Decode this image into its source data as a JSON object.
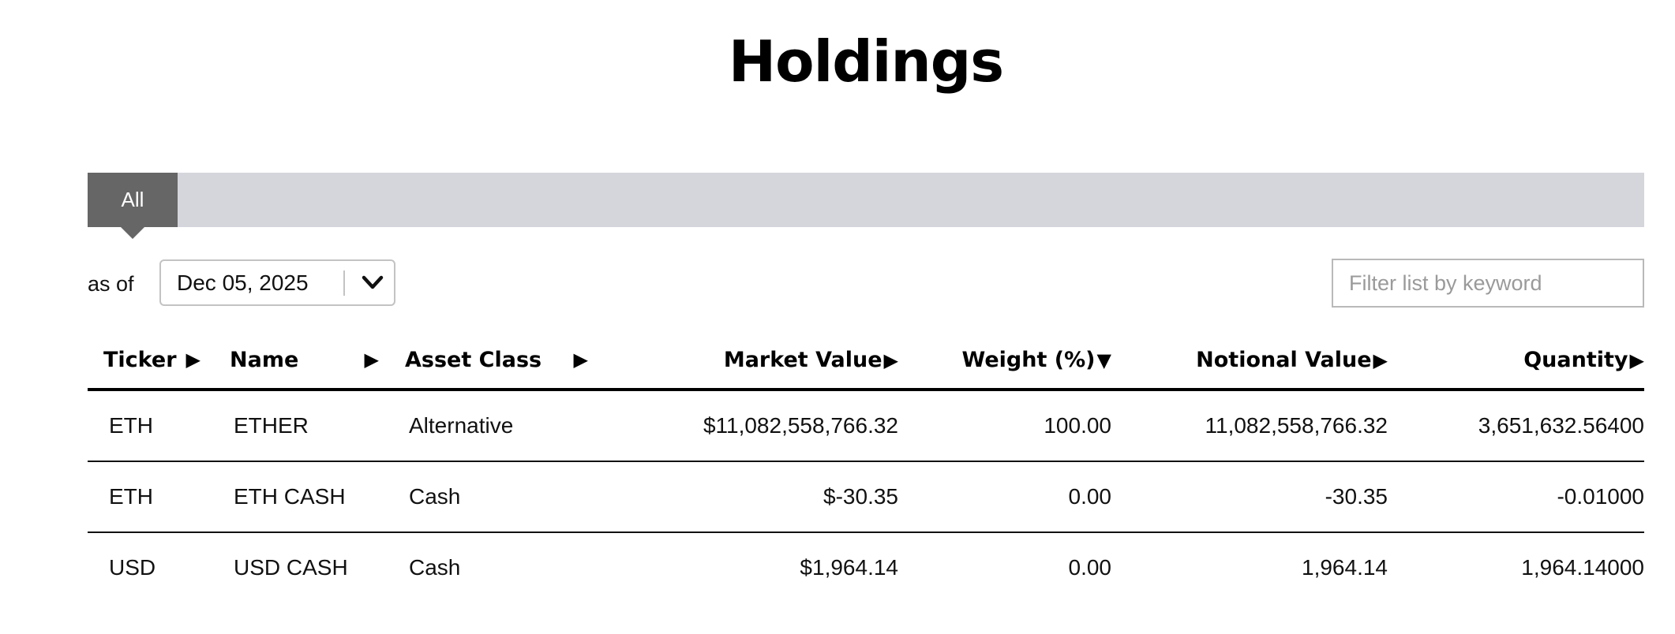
{
  "page": {
    "title": "Holdings"
  },
  "tabs": [
    {
      "label": "All",
      "active": true
    }
  ],
  "filters": {
    "as_of_label": "as of",
    "date_value": "Dec 05, 2025",
    "search_placeholder": "Filter list by keyword"
  },
  "table": {
    "columns": [
      {
        "label": "Ticker",
        "sort_icon": "▶"
      },
      {
        "label": "Name",
        "sort_icon": "▶"
      },
      {
        "label": "Asset Class",
        "sort_icon": "▶"
      },
      {
        "label": "Market Value",
        "sort_icon": "▶"
      },
      {
        "label": "Weight (%)",
        "sort_icon": "▼"
      },
      {
        "label": "Notional Value",
        "sort_icon": "▶"
      },
      {
        "label": "Quantity",
        "sort_icon": "▶"
      }
    ],
    "rows": [
      [
        "ETH",
        "ETHER",
        "Alternative",
        "$11,082,558,766.32",
        "100.00",
        "11,082,558,766.32",
        "3,651,632.56400"
      ],
      [
        "ETH",
        "ETH CASH",
        "Cash",
        "$-30.35",
        "0.00",
        "-30.35",
        "-0.01000"
      ],
      [
        "USD",
        "USD CASH",
        "Cash",
        "$1,964.14",
        "0.00",
        "1,964.14",
        "1,964.14000"
      ]
    ]
  },
  "colors": {
    "tab_strip": "#d5d5dc",
    "tab_active": "#666666",
    "header_rule": "#000000"
  }
}
